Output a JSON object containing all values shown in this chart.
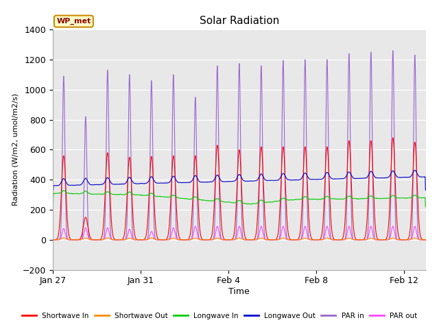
{
  "title": "Solar Radiation",
  "ylabel": "Radiation (W/m2, umol/m2/s)",
  "xlabel": "Time",
  "ylim": [
    -200,
    1400
  ],
  "yticks": [
    -200,
    0,
    200,
    400,
    600,
    800,
    1000,
    1200,
    1400
  ],
  "x_tick_positions": [
    0,
    4,
    8,
    12,
    16
  ],
  "x_tick_labels": [
    "Jan 27",
    "Jan 31",
    "Feb 4",
    "Feb 8",
    "Feb 12"
  ],
  "xlim": [
    0,
    17
  ],
  "fig_bg_color": "#ffffff",
  "plot_bg_color": "#e8e8e8",
  "annotation_text": "WP_met",
  "annotation_bg": "#ffffcc",
  "annotation_border": "#cc8800",
  "annotation_text_color": "#880000",
  "series": {
    "shortwave_in": {
      "color": "#ff0000",
      "label": "Shortwave In",
      "lw": 0.8
    },
    "shortwave_out": {
      "color": "#ff8800",
      "label": "Shortwave Out",
      "lw": 0.8
    },
    "longwave_in": {
      "color": "#00cc00",
      "label": "Longwave In",
      "lw": 0.8
    },
    "longwave_out": {
      "color": "#0000cc",
      "label": "Longwave Out",
      "lw": 0.8
    },
    "par_in": {
      "color": "#9966cc",
      "label": "PAR in",
      "lw": 0.8
    },
    "par_out": {
      "color": "#ff44ff",
      "label": "PAR out",
      "lw": 0.8
    }
  },
  "n_days": 17,
  "pts_per_day": 288,
  "par_in_peaks": [
    1090,
    820,
    1130,
    1100,
    1060,
    1100,
    950,
    1160,
    1175,
    1160,
    1195,
    1200,
    1200,
    1240,
    1250,
    1260,
    1230
  ],
  "sw_in_peaks": [
    560,
    150,
    580,
    550,
    555,
    560,
    560,
    630,
    600,
    620,
    620,
    620,
    620,
    660,
    660,
    680,
    650
  ],
  "par_out_peaks": [
    75,
    80,
    80,
    70,
    55,
    80,
    90,
    90,
    90,
    90,
    90,
    90,
    90,
    90,
    90,
    90,
    90
  ]
}
